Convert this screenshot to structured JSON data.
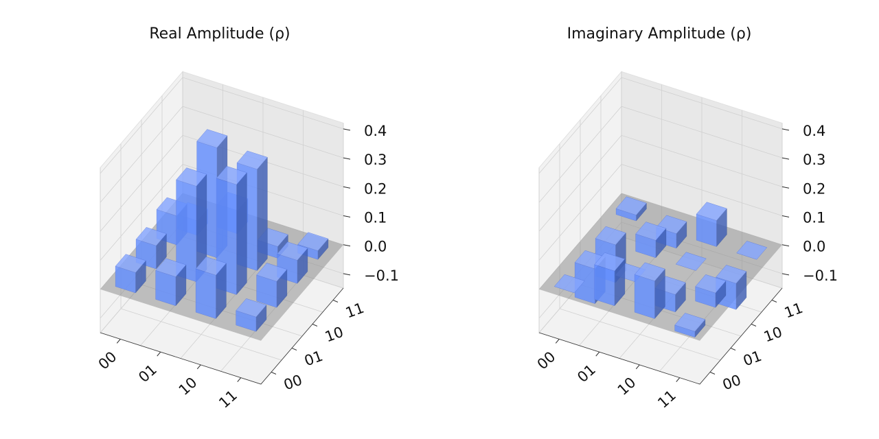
{
  "chart_data": [
    {
      "type": "bar3d",
      "title": "Real Amplitude (ρ)",
      "x_categories": [
        "00",
        "01",
        "10",
        "11"
      ],
      "y_categories": [
        "00",
        "01",
        "10",
        "11"
      ],
      "values": [
        [
          0.07,
          0.08,
          0.1,
          -0.05
        ],
        [
          0.1,
          0.33,
          0.38,
          0.08
        ],
        [
          0.15,
          0.38,
          0.35,
          -0.04
        ],
        [
          0.05,
          0.09,
          0.08,
          0.03
        ]
      ],
      "color": "#648fff",
      "zlim": [
        -0.15,
        0.42
      ],
      "zticks": [
        {
          "value": -0.1,
          "label": "−0.1"
        },
        {
          "value": 0,
          "label": "0.0"
        },
        0.1,
        0.2,
        0.3,
        0.4
      ]
    },
    {
      "type": "bar3d",
      "title": "Imaginary Amplitude (ρ)",
      "x_categories": [
        "00",
        "01",
        "10",
        "11"
      ],
      "y_categories": [
        "00",
        "01",
        "10",
        "11"
      ],
      "values": [
        [
          0,
          -0.12,
          -0.13,
          0.02
        ],
        [
          0.12,
          0,
          0.06,
          -0.05
        ],
        [
          0.13,
          -0.06,
          0,
          0.09
        ],
        [
          -0.02,
          0.05,
          -0.09,
          0
        ]
      ],
      "color": "#648fff",
      "zlim": [
        -0.15,
        0.42
      ],
      "zticks": [
        {
          "value": -0.1,
          "label": "−0.1"
        },
        {
          "value": 0,
          "label": "0.0"
        },
        0.1,
        0.2,
        0.3,
        0.4
      ]
    }
  ]
}
